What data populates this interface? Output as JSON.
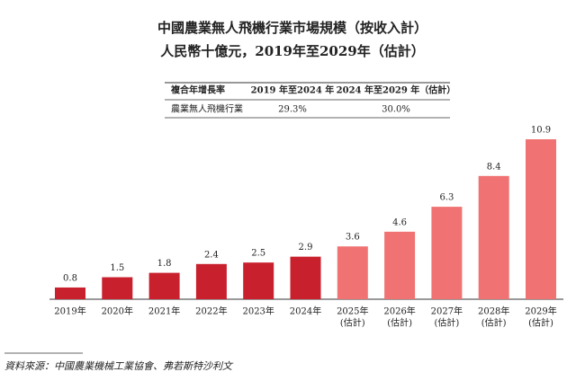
{
  "chart_data": {
    "type": "bar",
    "title": "中國農業無人飛機行業市場規模（按收入計）",
    "subtitle": "人民幣十億元，2019年至2029年（估計）",
    "categories": [
      "2019年",
      "2020年",
      "2021年",
      "2022年",
      "2023年",
      "2024年",
      "2025年",
      "2026年",
      "2027年",
      "2028年",
      "2029年"
    ],
    "category_notes": [
      null,
      null,
      null,
      null,
      null,
      null,
      "(估計)",
      "(估計)",
      "(估計)",
      "(估計)",
      "(估計)"
    ],
    "values": [
      0.8,
      1.5,
      1.8,
      2.4,
      2.5,
      2.9,
      3.6,
      4.6,
      6.3,
      8.4,
      10.9
    ],
    "colors": [
      "#c8202d",
      "#c8202d",
      "#c8202d",
      "#c8202d",
      "#c8202d",
      "#c8202d",
      "#f07272",
      "#f07272",
      "#f07272",
      "#f07272",
      "#f07272"
    ],
    "table": {
      "header": [
        "複合年增長率",
        "2019 年至2024 年",
        "2024 年至2029 年（估計）"
      ],
      "rows": [
        [
          "農業無人飛機行業",
          "29.3%",
          "30.0%"
        ]
      ]
    },
    "source": "資料來源：中國農業機械工業協會、弗若斯特沙利文"
  }
}
